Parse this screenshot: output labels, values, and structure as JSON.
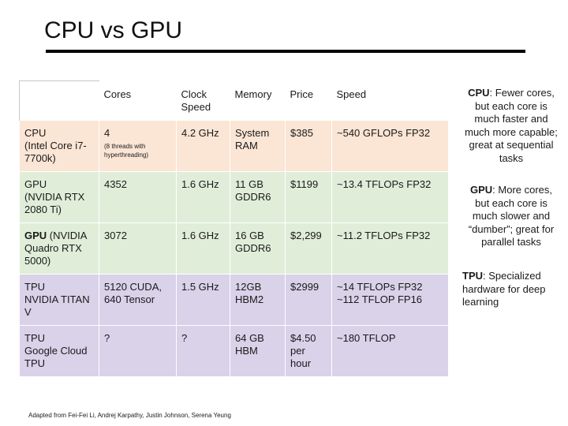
{
  "title": "CPU vs GPU",
  "table": {
    "headers": [
      "",
      "Cores",
      "Clock Speed",
      "Memory",
      "Price",
      "Speed"
    ],
    "rows": [
      {
        "name_bold": "CPU",
        "name_rest": "(Intel Core i7-7700k)",
        "cores": "4",
        "cores_sub": "(8 threads with hyperthreading)",
        "clock": "4.2 GHz",
        "memory": "System RAM",
        "price": "$385",
        "speed": "~540 GFLOPs FP32"
      },
      {
        "name_bold": "GPU",
        "name_rest": "(NVIDIA RTX 2080 Ti)",
        "cores": "4352",
        "cores_sub": "",
        "clock": "1.6 GHz",
        "memory": "11 GB GDDR6",
        "price": "$1199",
        "speed": "~13.4 TFLOPs FP32"
      },
      {
        "name_bold": "GPU",
        "name_rest": "(NVIDIA Quadro RTX 5000)",
        "cores": "3072",
        "cores_sub": "",
        "clock": "1.6 GHz",
        "memory": "16 GB GDDR6",
        "price": "$2,299",
        "speed": "~11.2 TFLOPs FP32"
      },
      {
        "name_bold": "TPU",
        "name_rest": "NVIDIA TITAN V",
        "cores": "5120 CUDA, 640 Tensor",
        "cores_sub": "",
        "clock": "1.5 GHz",
        "memory": "12GB HBM2",
        "price": "$2999",
        "speed": "~14 TFLOPs FP32 ~112 TFLOP FP16"
      },
      {
        "name_bold": "TPU",
        "name_rest": "Google Cloud TPU",
        "cores": "?",
        "cores_sub": "",
        "clock": "?",
        "memory": "64 GB HBM",
        "price": "$4.50 per hour",
        "speed": "~180 TFLOP"
      }
    ]
  },
  "notes": [
    {
      "bold": "CPU",
      "text": ": Fewer cores, but each core is much faster and much more capable; great at sequential tasks"
    },
    {
      "bold": "GPU",
      "text": ": More cores, but each core is much slower and “dumber”; great for parallel tasks"
    },
    {
      "bold": "TPU",
      "text": ": Specialized hardware for deep learning"
    }
  ],
  "credit": "Adapted from Fei-Fei Li, Andrej Karpathy, Justin Johnson, Serena Yeung"
}
